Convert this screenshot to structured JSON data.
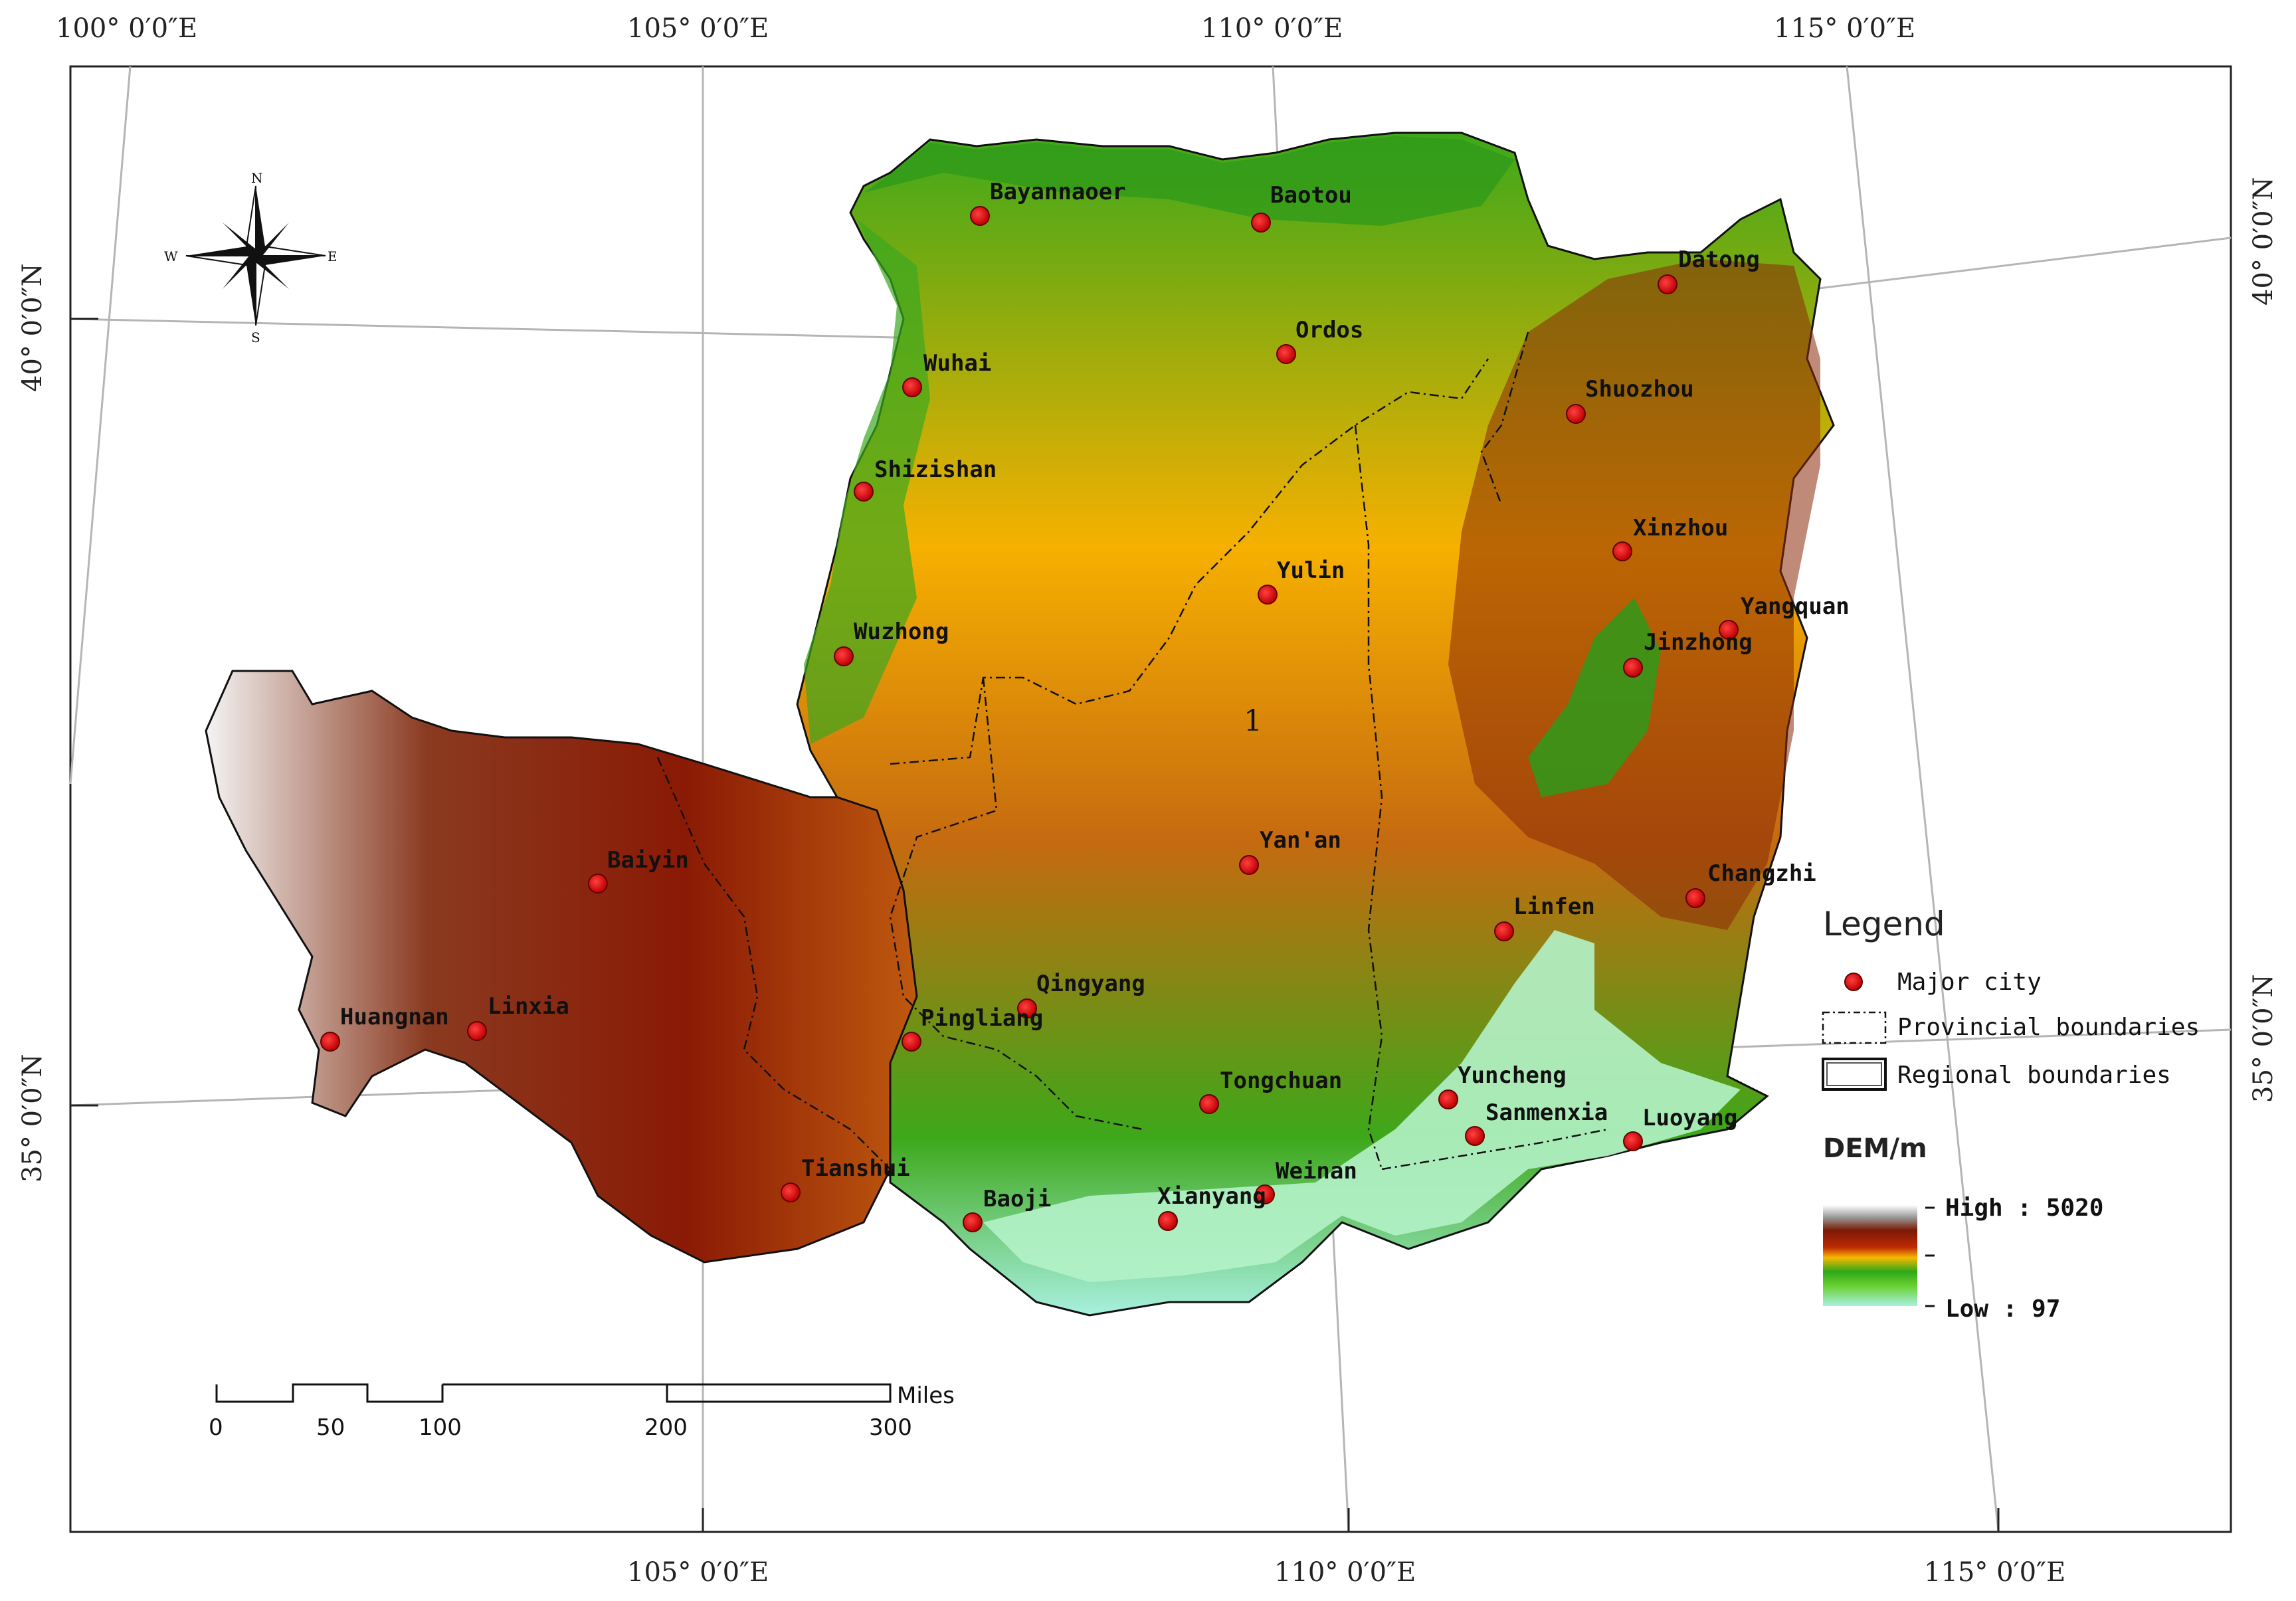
{
  "colors": {
    "frame": "#222222",
    "graticule": "#b5b5b5",
    "city_dot": "#e01010",
    "dem_high": "#ffffff",
    "dem_red": "#8a1a05",
    "dem_orange": "#f6a800",
    "dem_green": "#3da81a",
    "dem_low": "#a8f0e0"
  },
  "graticule": {
    "top_labels": [
      "100° 0′0″E",
      "105° 0′0″E",
      "110° 0′0″E",
      "115° 0′0″E"
    ],
    "bottom_labels": [
      "105° 0′0″E",
      "110° 0′0″E",
      "115° 0′0″E"
    ],
    "left_labels": [
      "40° 0′0″N",
      "35° 0′0″N"
    ],
    "right_labels": [
      "40° 0′0″N",
      "35° 0′0″N"
    ]
  },
  "compass": {
    "n": "N",
    "s": "S",
    "e": "E",
    "w": "W",
    "icon": "compass-rose-icon"
  },
  "cities": [
    {
      "name": "Bayannaoer"
    },
    {
      "name": "Baotou"
    },
    {
      "name": "Datong"
    },
    {
      "name": "Ordos"
    },
    {
      "name": "Wuhai"
    },
    {
      "name": "Shuozhou"
    },
    {
      "name": "Shizishan"
    },
    {
      "name": "Xinzhou"
    },
    {
      "name": "Yulin"
    },
    {
      "name": "Yangquan"
    },
    {
      "name": "Wuzhong"
    },
    {
      "name": "Jinzhong"
    },
    {
      "name": "Yan'an"
    },
    {
      "name": "Baiyin"
    },
    {
      "name": "Changzhi"
    },
    {
      "name": "Linfen"
    },
    {
      "name": "Qingyang"
    },
    {
      "name": "Huangnan"
    },
    {
      "name": "Linxia"
    },
    {
      "name": "Pingliang"
    },
    {
      "name": "Tongchuan"
    },
    {
      "name": "Yuncheng"
    },
    {
      "name": "Sanmenxia"
    },
    {
      "name": "Luoyang"
    },
    {
      "name": "Tianshui"
    },
    {
      "name": "Weinan"
    },
    {
      "name": "Baoji"
    },
    {
      "name": "Xianyang"
    }
  ],
  "region_label": "1",
  "legend": {
    "title": "Legend",
    "major_city": "Major city",
    "provincial": "Provincial boundaries",
    "regional": "Regional boundaries",
    "dem_title": "DEM/m",
    "high": "High : 5020",
    "low": "Low : 97"
  },
  "scale_bar": {
    "ticks": [
      "0",
      "50",
      "100",
      "200",
      "300"
    ],
    "unit": "Miles"
  }
}
